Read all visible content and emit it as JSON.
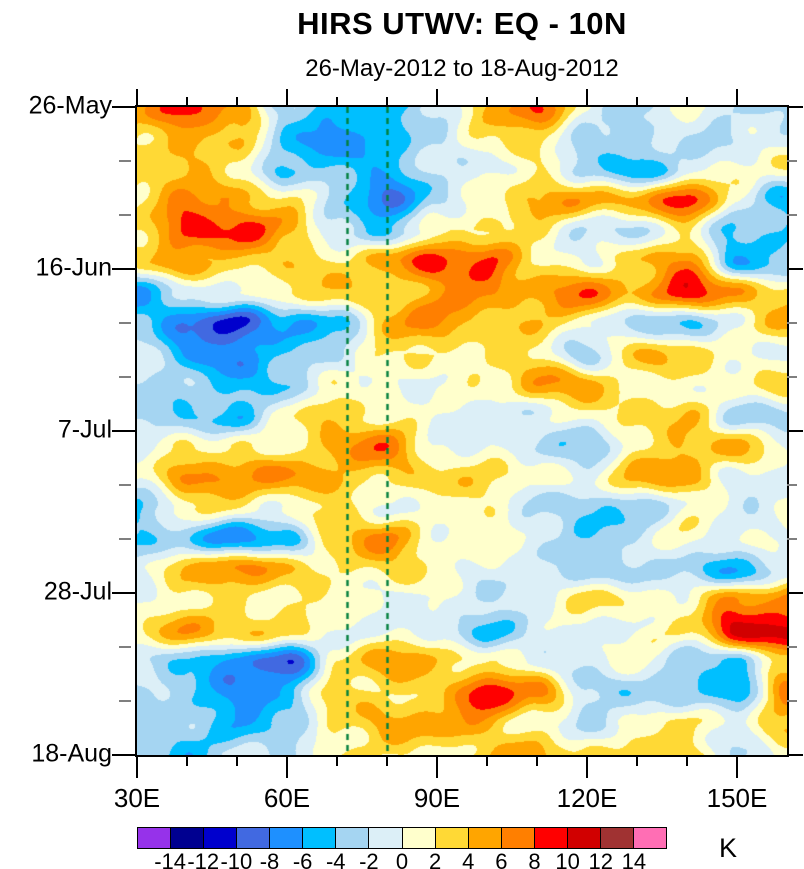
{
  "title": "HIRS UTWV: EQ - 10N",
  "subtitle": "26-May-2012 to 18-Aug-2012",
  "colorbar": {
    "unit_label": "K",
    "boundary_labels": [
      "-14",
      "-12",
      "-10",
      "-8",
      "-6",
      "-4",
      "-2",
      "0",
      "2",
      "4",
      "6",
      "8",
      "10",
      "12",
      "14"
    ],
    "colors": [
      "#9632EA",
      "#000090",
      "#0000CD",
      "#4169E1",
      "#1E90FF",
      "#00BFFF",
      "#A5D5F2",
      "#DCEFF7",
      "#FFFFCC",
      "#FFD935",
      "#FFA500",
      "#FF7F00",
      "#FF0000",
      "#D10000",
      "#A03232",
      "#FF6EB4"
    ]
  },
  "axes": {
    "x": {
      "major_labels": [
        "30E",
        "60E",
        "90E",
        "120E",
        "150E"
      ],
      "major_lons": [
        30,
        60,
        90,
        120,
        150
      ],
      "minor_lons": [
        40,
        50,
        70,
        80,
        100,
        110,
        130,
        140
      ],
      "range_lons": [
        30,
        160
      ]
    },
    "y": {
      "major_labels": [
        "26-May",
        "16-Jun",
        "7-Jul",
        "28-Jul",
        "18-Aug"
      ],
      "major_days": [
        0,
        21,
        42,
        63,
        84
      ],
      "minor_days": [
        7,
        14,
        28,
        35,
        49,
        56,
        70,
        77
      ],
      "range_days": [
        0,
        84
      ]
    }
  },
  "reference_lines": {
    "lons": [
      72,
      80
    ],
    "color": "#007F3C",
    "style": "dashed"
  },
  "chart_data": {
    "type": "heatmap",
    "title": "HIRS UTWV: EQ - 10N",
    "subtitle": "26-May-2012 to 18-Aug-2012",
    "value_unit": "K",
    "x_tick_labels": [
      "30E",
      "60E",
      "90E",
      "120E",
      "150E"
    ],
    "y_tick_labels": [
      "26-May",
      "16-Jun",
      "7-Jul",
      "28-Jul",
      "18-Aug"
    ],
    "x_range_lons": [
      30,
      160
    ],
    "y_range_days": [
      0,
      84
    ],
    "levels": [
      -14,
      -12,
      -10,
      -8,
      -6,
      -4,
      -2,
      0,
      2,
      4,
      6,
      8,
      10,
      12,
      14
    ],
    "palette": [
      "#9632EA",
      "#000090",
      "#0000CD",
      "#4169E1",
      "#1E90FF",
      "#00BFFF",
      "#A5D5F2",
      "#DCEFF7",
      "#FFFFCC",
      "#FFD935",
      "#FFA500",
      "#FF7F00",
      "#FF0000",
      "#D10000",
      "#A03232",
      "#FF6EB4"
    ],
    "reference_line_lons": [
      72,
      80
    ],
    "grid_x_lons": [
      30,
      40,
      50,
      60,
      70,
      80,
      90,
      100,
      110,
      120,
      130,
      140,
      150,
      160
    ],
    "grid_y_days": [
      0,
      4,
      8,
      12,
      16,
      20,
      24,
      28,
      32,
      36,
      40,
      44,
      48,
      52,
      56,
      60,
      64,
      68,
      72,
      76,
      80,
      84
    ],
    "values": [
      [
        4,
        9,
        7,
        -4,
        -5,
        -5,
        -1,
        4,
        7,
        1,
        -3,
        0,
        -2,
        -3
      ],
      [
        2,
        5,
        3,
        -5,
        -6,
        -7,
        -2,
        2,
        3,
        -3,
        -4,
        -1,
        -2,
        -2
      ],
      [
        3,
        4,
        2,
        -4,
        -4,
        -4,
        -2,
        0,
        2,
        -3,
        -5,
        -2,
        2,
        2
      ],
      [
        2,
        6,
        6,
        2,
        -4,
        -8,
        -3,
        1,
        4,
        5,
        6,
        8,
        0,
        -5
      ],
      [
        2,
        9,
        8,
        5,
        0,
        -6,
        2,
        2,
        3,
        -2,
        -4,
        3,
        -4,
        -5
      ],
      [
        2,
        6,
        4,
        3,
        2,
        6,
        9,
        9,
        1,
        1,
        4,
        6,
        -5,
        -4
      ],
      [
        -6,
        -2,
        0,
        2,
        3,
        3,
        5,
        6,
        5,
        7,
        5,
        9,
        5,
        3
      ],
      [
        -3,
        -8,
        -11,
        -6,
        -4,
        4,
        6,
        4,
        4,
        1,
        -4,
        -4,
        1,
        4
      ],
      [
        -2,
        -5,
        -7,
        -4,
        -2,
        2,
        3,
        2,
        1,
        -2,
        4,
        4,
        0,
        -1
      ],
      [
        -1,
        -4,
        -5,
        -4,
        1,
        0,
        -1,
        1,
        6,
        4,
        1,
        0,
        1,
        4
      ],
      [
        -2,
        -4,
        -5,
        2,
        4,
        2,
        -1,
        0,
        -1,
        1,
        3,
        4,
        -2,
        -3
      ],
      [
        -3,
        3,
        2,
        0,
        5,
        7,
        1,
        -1,
        -3,
        -3,
        1,
        4,
        4,
        0
      ],
      [
        1,
        5,
        6,
        6,
        5,
        2,
        2,
        4,
        1,
        -1,
        5,
        5,
        0,
        -2
      ],
      [
        -4,
        2,
        2,
        1,
        2,
        1,
        0,
        2,
        -2,
        -4,
        -3,
        0,
        -1,
        1
      ],
      [
        -5,
        -4,
        -7,
        -6,
        4,
        6,
        1,
        1,
        -2,
        -3,
        -2,
        1,
        -1,
        0
      ],
      [
        -1,
        5,
        6,
        4,
        3,
        2,
        1,
        0,
        -1,
        -3,
        -4,
        -2,
        -5,
        -3
      ],
      [
        0,
        1,
        3,
        2,
        0,
        1,
        0,
        -2,
        -1,
        3,
        3,
        0,
        6,
        8
      ],
      [
        2,
        5,
        4,
        2,
        0,
        -1,
        -1,
        -5,
        -2,
        -1,
        0,
        1,
        11,
        10
      ],
      [
        -2,
        -3,
        -8,
        -10,
        3,
        5,
        4,
        2,
        0,
        -1,
        0,
        -2,
        -4,
        2
      ],
      [
        -2,
        -4,
        -6,
        -5,
        2,
        3,
        3,
        10,
        6,
        -2,
        -2,
        -5,
        -6,
        8
      ],
      [
        -2,
        -4,
        -6,
        -4,
        2,
        5,
        4,
        5,
        1,
        -4,
        1,
        2,
        0,
        4
      ],
      [
        -3,
        -4,
        -2,
        -2,
        3,
        2,
        1,
        4,
        5,
        3,
        2,
        4,
        -2,
        0
      ]
    ]
  }
}
